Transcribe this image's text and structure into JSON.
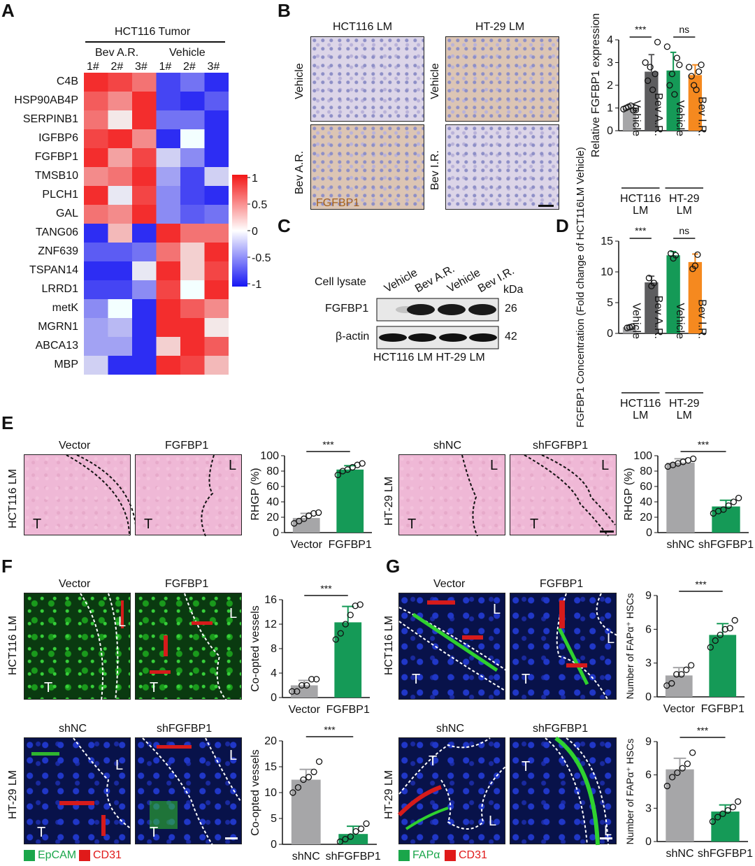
{
  "panels": {
    "A": "A",
    "B": "B",
    "C": "C",
    "D": "D",
    "E": "E",
    "F": "F",
    "G": "G"
  },
  "heatmap": {
    "title": "HCT116 Tumor",
    "groups": [
      "Bev A.R.",
      "Vehicle"
    ],
    "samples": [
      "1#",
      "2#",
      "3#",
      "1#",
      "2#",
      "3#"
    ],
    "genes": [
      "C4B",
      "HSP90AB4P",
      "SERPINB1",
      "IGFBP6",
      "FGFBP1",
      "TMSB10",
      "PLCH1",
      "GAL",
      "TANG06",
      "ZNF639",
      "TSPAN14",
      "LRRD1",
      "metK",
      "MGRN1",
      "ABCA13",
      "MBP"
    ],
    "values": [
      [
        0.9,
        0.8,
        0.6,
        -0.8,
        -0.6,
        -0.9
      ],
      [
        0.7,
        0.5,
        0.9,
        -0.8,
        -0.9,
        -0.7
      ],
      [
        0.6,
        0.1,
        0.9,
        -0.6,
        -0.6,
        -0.9
      ],
      [
        0.8,
        0.9,
        0.5,
        -0.9,
        0.0,
        -0.9
      ],
      [
        0.9,
        0.4,
        0.8,
        -0.2,
        -0.5,
        -0.9
      ],
      [
        0.5,
        0.6,
        0.9,
        -0.4,
        -0.8,
        -0.2
      ],
      [
        0.9,
        -0.1,
        0.8,
        -0.5,
        -0.8,
        -0.9
      ],
      [
        0.6,
        0.5,
        0.9,
        -0.5,
        -0.7,
        -0.6
      ],
      [
        -0.9,
        0.3,
        -0.9,
        0.9,
        0.6,
        0.6
      ],
      [
        -0.7,
        -0.7,
        -0.6,
        0.6,
        0.2,
        0.9
      ],
      [
        -0.9,
        -0.9,
        -0.1,
        0.9,
        0.2,
        0.8
      ],
      [
        -0.8,
        -0.8,
        -0.5,
        0.8,
        0.0,
        0.9
      ],
      [
        -0.5,
        0.0,
        -0.9,
        0.9,
        0.7,
        0.5
      ],
      [
        -0.4,
        -0.3,
        -0.9,
        0.9,
        0.9,
        0.1
      ],
      [
        -0.4,
        -0.4,
        -0.9,
        0.2,
        0.9,
        0.7
      ],
      [
        -0.2,
        -0.9,
        -0.9,
        0.9,
        0.8,
        0.3
      ]
    ],
    "scale_ticks": [
      "1",
      "0.5",
      "0",
      "-0.5",
      "-1"
    ]
  },
  "panelB": {
    "col_titles": [
      "HCT116 LM",
      "HT-29 LM"
    ],
    "row_labels": [
      "Vehicle",
      "Bev A.R.",
      "Vehicle",
      "Bev I.R."
    ],
    "stain_label": "FGFBP1"
  },
  "panelC": {
    "cell_lysate": "Cell lysate",
    "lanes": [
      "Vehicle",
      "Bev A.R.",
      "Vehicle",
      "Bev I.R."
    ],
    "kda": "kDa",
    "bands": [
      "FGFBP1",
      "β-actin"
    ],
    "sizes": [
      "26",
      "42"
    ],
    "groups": "HCT116 LM  HT-29 LM"
  },
  "chart_data": [
    {
      "id": "B",
      "type": "bar",
      "ylabel": "Relative FGFBP1 expression",
      "ylim": [
        0,
        4
      ],
      "yticks": [
        "0",
        "1",
        "2",
        "3",
        "4"
      ],
      "categories": [
        "Vehicle",
        "Bev A.R.",
        "Vehicle",
        "Bev I.R."
      ],
      "values": [
        1.0,
        2.6,
        2.65,
        2.45
      ],
      "errors": [
        0.15,
        0.75,
        0.8,
        0.45
      ],
      "colors": [
        "#a6a6a8",
        "#5d5d5f",
        "#159a57",
        "#f5891f"
      ],
      "groups": [
        "HCT116 LM",
        "HT-29 LM"
      ],
      "sig": [
        "***",
        "ns"
      ],
      "points": [
        [
          0.95,
          1.0,
          1.05,
          1.1,
          0.9,
          1.0
        ],
        [
          3.0,
          2.2,
          2.8,
          1.8,
          2.5,
          3.9
        ],
        [
          3.7,
          2.0,
          2.5,
          1.6,
          3.2,
          2.9
        ],
        [
          2.8,
          2.4,
          2.0,
          1.8,
          2.6,
          2.9
        ]
      ]
    },
    {
      "id": "D",
      "type": "bar",
      "ylabel": "FGFBP1 Concentration (Fold change of HCT116LM Vehicle)",
      "ylim": [
        0,
        15
      ],
      "yticks": [
        "0",
        "5",
        "10",
        "15"
      ],
      "categories": [
        "Vehicle",
        "Bev A.R.",
        "Vehicle",
        "Bev I.R."
      ],
      "values": [
        1.0,
        8.3,
        12.7,
        11.6
      ],
      "errors": [
        0.2,
        1.0,
        0.6,
        1.3
      ],
      "colors": [
        "#a6a6a8",
        "#5d5d5f",
        "#159a57",
        "#f5891f"
      ],
      "groups": [
        "HCT116 LM",
        "HT-29 LM"
      ],
      "sig": [
        "***",
        "ns"
      ],
      "points": [
        [
          0.9,
          1.0,
          1.1
        ],
        [
          9.0,
          7.7,
          8.2
        ],
        [
          13.0,
          12.2,
          12.7
        ],
        [
          10.5,
          11.0,
          12.8
        ]
      ]
    },
    {
      "id": "E1",
      "type": "bar",
      "ylabel": "RHGP (%)",
      "ylim": [
        0,
        100
      ],
      "yticks": [
        "0",
        "20",
        "40",
        "60",
        "80",
        "100"
      ],
      "categories": [
        "Vector",
        "FGFBP1"
      ],
      "values": [
        19,
        82
      ],
      "errors": [
        6,
        5
      ],
      "colors": [
        "#a6a6a8",
        "#159a57"
      ],
      "sig": [
        "***"
      ],
      "points": [
        [
          12,
          15,
          18,
          22,
          25,
          26
        ],
        [
          75,
          80,
          82,
          85,
          88,
          90
        ]
      ]
    },
    {
      "id": "E2",
      "type": "bar",
      "ylabel": "RHGP (%)",
      "ylim": [
        0,
        100
      ],
      "yticks": [
        "0",
        "20",
        "40",
        "60",
        "80",
        "100"
      ],
      "categories": [
        "shNC",
        "shFGFBP1"
      ],
      "values": [
        91,
        34
      ],
      "errors": [
        5,
        8
      ],
      "colors": [
        "#a6a6a8",
        "#159a57"
      ],
      "sig": [
        "***"
      ],
      "points": [
        [
          86,
          88,
          90,
          92,
          94,
          96
        ],
        [
          25,
          28,
          30,
          35,
          40,
          45
        ]
      ]
    },
    {
      "id": "F1",
      "type": "bar",
      "ylabel": "Co-opted vessels",
      "ylim": [
        0,
        16
      ],
      "yticks": [
        "0",
        "4",
        "8",
        "12",
        "16"
      ],
      "categories": [
        "Vector",
        "FGFBP1"
      ],
      "values": [
        2.0,
        12.3
      ],
      "errors": [
        0.8,
        2.6
      ],
      "colors": [
        "#a6a6a8",
        "#159a57"
      ],
      "sig": [
        "***"
      ],
      "points": [
        [
          1,
          1,
          2,
          2,
          3,
          3
        ],
        [
          9.5,
          10.5,
          12,
          13.5,
          15,
          15.2
        ]
      ]
    },
    {
      "id": "F2",
      "type": "bar",
      "ylabel": "Co-opted vessels",
      "ylim": [
        0,
        20
      ],
      "yticks": [
        "0",
        "5",
        "10",
        "15",
        "20"
      ],
      "categories": [
        "shNC",
        "shFGFBP1"
      ],
      "values": [
        12.5,
        2.0
      ],
      "errors": [
        2.0,
        1.5
      ],
      "colors": [
        "#a6a6a8",
        "#159a57"
      ],
      "sig": [
        "***"
      ],
      "points": [
        [
          10,
          11,
          12.5,
          13,
          14,
          16
        ],
        [
          0.5,
          1,
          1.5,
          2.5,
          3,
          4
        ]
      ]
    },
    {
      "id": "G1",
      "type": "bar",
      "ylabel": "Number of FAPα⁺ HSCs",
      "ylim": [
        0,
        9
      ],
      "yticks": [
        "0",
        "3",
        "6",
        "9"
      ],
      "categories": [
        "Vector",
        "FGFBP1"
      ],
      "values": [
        1.9,
        5.5
      ],
      "errors": [
        0.7,
        1.0
      ],
      "colors": [
        "#a6a6a8",
        "#159a57"
      ],
      "sig": [
        "***"
      ],
      "points": [
        [
          1,
          1.2,
          2,
          2,
          2.4,
          2.8
        ],
        [
          4.4,
          5,
          5.5,
          6,
          6.1,
          6.8
        ]
      ]
    },
    {
      "id": "G2",
      "type": "bar",
      "ylabel": "Number of FAPα⁺ HSCs",
      "ylim": [
        0,
        9
      ],
      "yticks": [
        "0",
        "3",
        "6",
        "9"
      ],
      "categories": [
        "shNC",
        "shFGFBP1"
      ],
      "values": [
        6.5,
        2.7
      ],
      "errors": [
        1.0,
        0.6
      ],
      "colors": [
        "#a6a6a8",
        "#159a57"
      ],
      "sig": [
        "***"
      ],
      "points": [
        [
          5,
          5.8,
          6.2,
          6.6,
          7.0,
          8.0
        ],
        [
          1.8,
          2.2,
          2.5,
          2.8,
          3.1,
          3.6
        ]
      ]
    }
  ],
  "panelE": {
    "row_label": "HCT116 LM",
    "row_label2": "HT-29 LM",
    "titles": [
      "Vector",
      "FGFBP1",
      "shNC",
      "shFGFBP1"
    ],
    "T": "T",
    "L": "L"
  },
  "panelF": {
    "titles": [
      "Vector",
      "FGFBP1",
      "shNC",
      "shFGFBP1"
    ],
    "row_labels": [
      "HCT116 LM",
      "HT-29 LM"
    ],
    "legend": [
      "EpCAM",
      "CD31"
    ],
    "legend_colors": [
      "#1aa64a",
      "#e01a1a"
    ]
  },
  "panelG": {
    "titles": [
      "Vector",
      "FGFBP1",
      "shNC",
      "shFGFBP1"
    ],
    "row_labels": [
      "HCT116 LM",
      "HT-29 LM"
    ],
    "legend": [
      "FAPα",
      "CD31"
    ],
    "legend_colors": [
      "#1aa64a",
      "#e01a1a"
    ]
  }
}
